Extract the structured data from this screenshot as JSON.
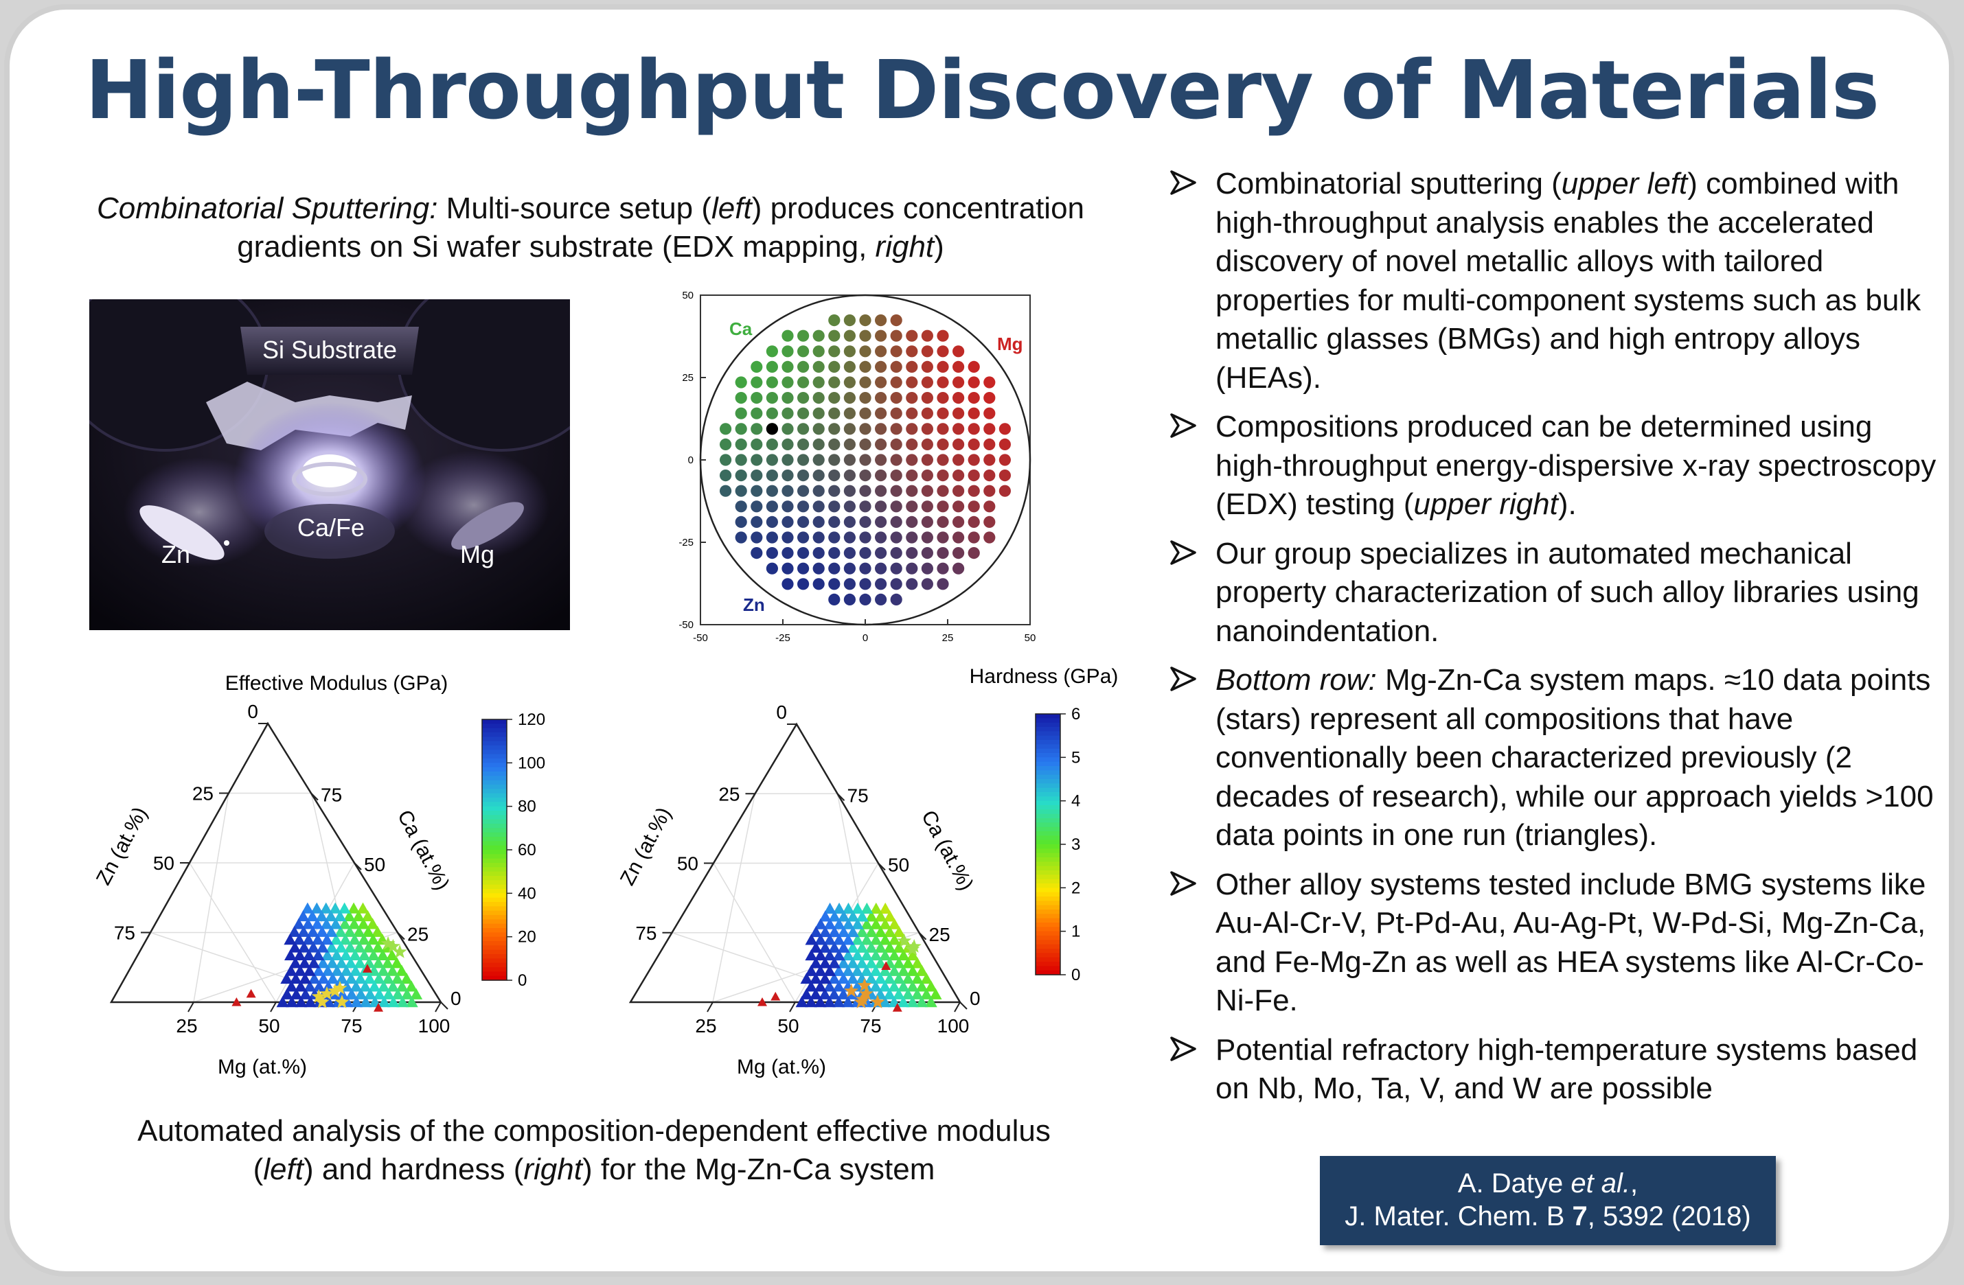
{
  "title": "High-Throughput Discovery of Materials",
  "caption_top": {
    "italic": "Combinatorial Sputtering:",
    "text1": " Multi-source setup (",
    "left": "left",
    "text2": ") produces concentration gradients on Si wafer substrate (EDX mapping, ",
    "right": "right",
    "text3": ")"
  },
  "photo": {
    "labels": {
      "substrate": "Si Substrate",
      "center": "Ca/Fe",
      "left": "Zn",
      "right": "Mg"
    }
  },
  "wafer_map": {
    "label_ca": "Ca",
    "label_mg": "Mg",
    "label_zn": "Zn",
    "ticks": [
      "-50",
      "-25",
      "0",
      "25",
      "50"
    ],
    "colors": {
      "ca": "#3fae3f",
      "mg": "#cc2222",
      "zn": "#1a2a8c"
    }
  },
  "ternary_left": {
    "title": "Effective Modulus (GPa)",
    "colorbar_ticks": [
      "120",
      "100",
      "80",
      "60",
      "40",
      "20",
      "0"
    ],
    "left_axis_label": "Zn (at.%)",
    "right_axis_label": "Ca (at.%)",
    "bottom_axis_label": "Mg (at.%)",
    "left_ticks": [
      "0",
      "25",
      "50",
      "75"
    ],
    "right_ticks": [
      "75",
      "50",
      "25",
      "0"
    ],
    "bottom_ticks": [
      "25",
      "50",
      "75",
      "100"
    ]
  },
  "ternary_right": {
    "title": "Hardness (GPa)",
    "colorbar_ticks": [
      "6",
      "5",
      "4",
      "3",
      "2",
      "1",
      "0"
    ],
    "left_axis_label": "Zn (at.%)",
    "right_axis_label": "Ca (at.%)",
    "bottom_axis_label": "Mg (at.%)",
    "left_ticks": [
      "0",
      "25",
      "50",
      "75"
    ],
    "right_ticks": [
      "75",
      "50",
      "25",
      "0"
    ],
    "bottom_ticks": [
      "25",
      "50",
      "75",
      "100"
    ]
  },
  "caption_bottom": {
    "text1": "Automated analysis of the composition-dependent effective modulus (",
    "left": "left",
    "text2": ") and hardness (",
    "right": "right",
    "text3": ") for the Mg-Zn-Ca system"
  },
  "bullets": [
    {
      "a": "Combinatorial sputtering (",
      "i": "upper left",
      "b": ") combined with high-throughput analysis enables the accelerated discovery of novel metallic alloys with tailored properties for multi-component systems such as bulk metallic glasses (BMGs) and high entropy alloys (HEAs)."
    },
    {
      "a": "Compositions produced can be determined using high-throughput energy-dispersive x-ray spectroscopy (EDX) testing (",
      "i": "upper right",
      "b": ")."
    },
    {
      "a": "Our group specializes in automated mechanical property characterization of such alloy libraries using nanoindentation.",
      "i": "",
      "b": ""
    },
    {
      "a": "",
      "i": "Bottom row:",
      "b": " Mg-Zn-Ca system maps. ≈10 data points (stars) represent all compositions that have conventionally been characterized previously (2 decades of research), while our approach yields >100 data points in one run (triangles)."
    },
    {
      "a": "Other alloy systems tested include BMG systems like Au-Al-Cr-V, Pt-Pd-Au, Au-Ag-Pt, W-Pd-Si, Mg-Zn-Ca, and Fe-Mg-Zn as well as HEA systems like Al-Cr-Co-Ni-Fe.",
      "i": "",
      "b": ""
    },
    {
      "a": "Potential refractory high-temperature systems based on Nb, Mo, Ta, V, and W are possible",
      "i": "",
      "b": ""
    }
  ],
  "reference": {
    "line1_a": "A. Datye ",
    "line1_i": "et al.",
    "line1_b": ",",
    "line2_a": "J. Mater. Chem. B ",
    "line2_b": "7",
    "line2_c": ", 5392 (2018)"
  }
}
